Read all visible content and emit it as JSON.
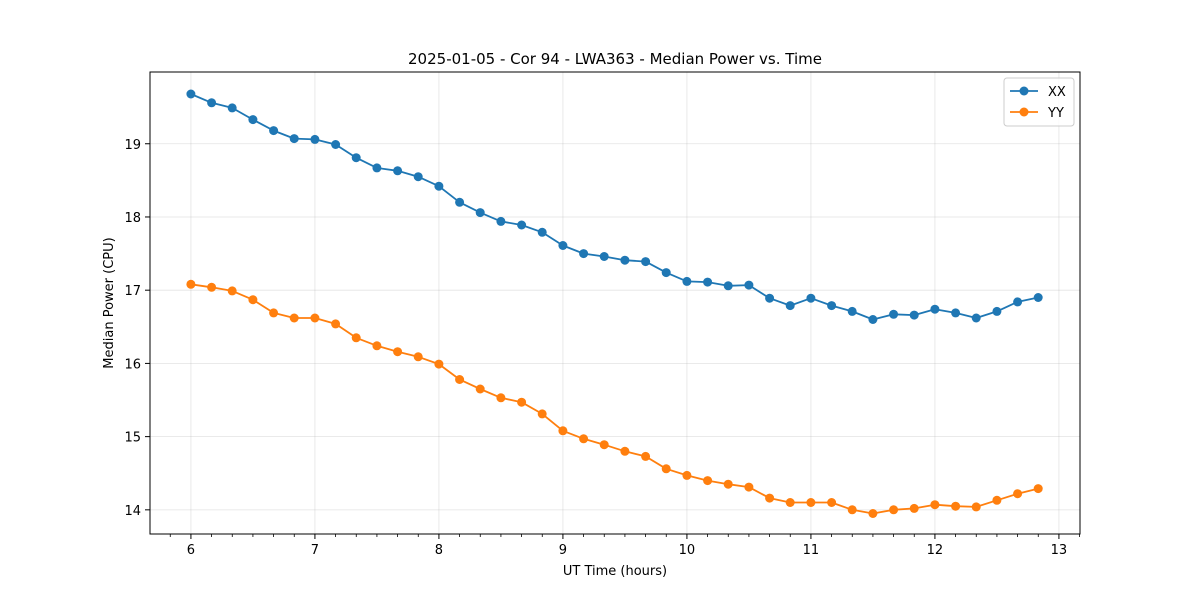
{
  "chart_data": {
    "type": "line",
    "title": "2025-01-05 - Cor 94 - LWA363 - Median Power vs. Time",
    "xlabel": "UT Time (hours)",
    "ylabel": "Median Power (CPU)",
    "xlim": [
      5.67,
      13.17
    ],
    "ylim": [
      13.67,
      19.98
    ],
    "x_ticks": [
      "6",
      "7",
      "8",
      "9",
      "10",
      "11",
      "12",
      "13"
    ],
    "y_ticks": [
      "14",
      "15",
      "16",
      "17",
      "18",
      "19"
    ],
    "grid": true,
    "legend_position": "top-right",
    "x": [
      6.0,
      6.167,
      6.333,
      6.5,
      6.667,
      6.833,
      7.0,
      7.167,
      7.333,
      7.5,
      7.667,
      7.833,
      8.0,
      8.167,
      8.333,
      8.5,
      8.667,
      8.833,
      9.0,
      9.167,
      9.333,
      9.5,
      9.667,
      9.833,
      10.0,
      10.167,
      10.333,
      10.5,
      10.667,
      10.833,
      11.0,
      11.167,
      11.333,
      11.5,
      11.667,
      11.833,
      12.0,
      12.167,
      12.333,
      12.5,
      12.667,
      12.833
    ],
    "series": [
      {
        "name": "XX",
        "color": "#1f77b4",
        "values": [
          19.68,
          19.56,
          19.49,
          19.33,
          19.18,
          19.07,
          19.06,
          18.99,
          18.81,
          18.67,
          18.63,
          18.55,
          18.42,
          18.2,
          18.06,
          17.94,
          17.89,
          17.79,
          17.61,
          17.5,
          17.46,
          17.41,
          17.39,
          17.24,
          17.12,
          17.11,
          17.06,
          17.07,
          16.89,
          16.79,
          16.89,
          16.79,
          16.71,
          16.6,
          16.67,
          16.66,
          16.74,
          16.69,
          16.62,
          16.71,
          16.84,
          16.9
        ]
      },
      {
        "name": "YY",
        "color": "#ff7f0e",
        "values": [
          17.08,
          17.04,
          16.99,
          16.87,
          16.69,
          16.62,
          16.62,
          16.54,
          16.35,
          16.24,
          16.16,
          16.09,
          15.99,
          15.78,
          15.65,
          15.53,
          15.47,
          15.31,
          15.08,
          14.97,
          14.89,
          14.8,
          14.73,
          14.56,
          14.47,
          14.4,
          14.35,
          14.31,
          14.16,
          14.1,
          14.1,
          14.1,
          14.0,
          13.95,
          14.0,
          14.02,
          14.07,
          14.05,
          14.04,
          14.13,
          14.22,
          14.29
        ]
      }
    ]
  }
}
